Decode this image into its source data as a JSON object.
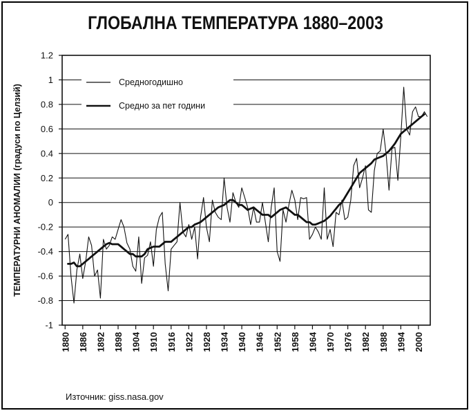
{
  "chart_data": {
    "type": "line",
    "title": "ГЛОБАЛНА ТЕМПЕРАТУРА 1880–2003",
    "xlabel": "",
    "ylabel": "ТЕМПЕРАТУРНИ АНОМАЛИИ (градуси по Целзий)",
    "xlim": [
      1879,
      2004
    ],
    "ylim": [
      -1,
      1.2
    ],
    "yticks": [
      -1,
      -0.8,
      -0.6,
      -0.4,
      -0.2,
      0,
      0.2,
      0.4,
      0.6,
      0.8,
      1,
      1.2
    ],
    "ytick_labels": [
      "-1",
      "-0.8",
      "-0.6",
      "-0.4",
      "-0.2",
      "0",
      "0.2",
      "0.4",
      "0.6",
      "0.8",
      "1",
      "1.2"
    ],
    "xticks": [
      1880,
      1886,
      1892,
      1898,
      1904,
      1910,
      1916,
      1922,
      1928,
      1934,
      1940,
      1946,
      1952,
      1958,
      1964,
      1970,
      1976,
      1982,
      1988,
      1994,
      2000
    ],
    "xtick_labels": [
      "1880",
      "1886",
      "1892",
      "1898",
      "1904",
      "1910",
      "1916",
      "1922",
      "1928",
      "1934",
      "1940",
      "1946",
      "1952",
      "1958",
      "1964",
      "1970",
      "1976",
      "1982",
      "1988",
      "1994",
      "2000"
    ],
    "grid": true,
    "legend_position": "top-left",
    "years": [
      1880,
      1881,
      1882,
      1883,
      1884,
      1885,
      1886,
      1887,
      1888,
      1889,
      1890,
      1891,
      1892,
      1893,
      1894,
      1895,
      1896,
      1897,
      1898,
      1899,
      1900,
      1901,
      1902,
      1903,
      1904,
      1905,
      1906,
      1907,
      1908,
      1909,
      1910,
      1911,
      1912,
      1913,
      1914,
      1915,
      1916,
      1917,
      1918,
      1919,
      1920,
      1921,
      1922,
      1923,
      1924,
      1925,
      1926,
      1927,
      1928,
      1929,
      1930,
      1931,
      1932,
      1933,
      1934,
      1935,
      1936,
      1937,
      1938,
      1939,
      1940,
      1941,
      1942,
      1943,
      1944,
      1945,
      1946,
      1947,
      1948,
      1949,
      1950,
      1951,
      1952,
      1953,
      1954,
      1955,
      1956,
      1957,
      1958,
      1959,
      1960,
      1961,
      1962,
      1963,
      1964,
      1965,
      1966,
      1967,
      1968,
      1969,
      1970,
      1971,
      1972,
      1973,
      1974,
      1975,
      1976,
      1977,
      1978,
      1979,
      1980,
      1981,
      1982,
      1983,
      1984,
      1985,
      1986,
      1987,
      1988,
      1989,
      1990,
      1991,
      1992,
      1993,
      1994,
      1995,
      1996,
      1997,
      1998,
      1999,
      2000,
      2001,
      2002,
      2003
    ],
    "series": [
      {
        "name": "Средногодишно",
        "values": [
          -0.3,
          -0.26,
          -0.6,
          -0.82,
          -0.55,
          -0.42,
          -0.62,
          -0.48,
          -0.28,
          -0.35,
          -0.6,
          -0.55,
          -0.78,
          -0.3,
          -0.38,
          -0.35,
          -0.28,
          -0.3,
          -0.22,
          -0.14,
          -0.2,
          -0.33,
          -0.38,
          -0.52,
          -0.56,
          -0.28,
          -0.66,
          -0.45,
          -0.43,
          -0.32,
          -0.52,
          -0.22,
          -0.12,
          -0.08,
          -0.5,
          -0.72,
          -0.38,
          -0.35,
          -0.32,
          0.0,
          -0.24,
          -0.28,
          -0.18,
          -0.3,
          -0.2,
          -0.46,
          -0.12,
          0.04,
          -0.2,
          -0.32,
          0.02,
          -0.08,
          -0.12,
          -0.14,
          0.2,
          -0.04,
          -0.16,
          0.08,
          0.0,
          -0.04,
          0.12,
          0.04,
          -0.04,
          -0.18,
          -0.04,
          -0.16,
          -0.16,
          0.0,
          -0.16,
          -0.32,
          -0.04,
          0.12,
          -0.4,
          -0.48,
          -0.06,
          -0.16,
          -0.02,
          0.1,
          0.02,
          -0.14,
          0.04,
          0.03,
          0.04,
          -0.3,
          -0.26,
          -0.2,
          -0.24,
          -0.3,
          0.12,
          -0.3,
          -0.22,
          -0.36,
          -0.08,
          -0.1,
          0.02,
          -0.14,
          -0.12,
          0.02,
          0.3,
          0.36,
          0.12,
          0.2,
          0.3,
          -0.06,
          -0.08,
          0.26,
          0.4,
          0.42,
          0.6,
          0.4,
          0.1,
          0.44,
          0.45,
          0.18,
          0.54,
          0.94,
          0.6,
          0.55,
          0.74,
          0.78,
          0.7,
          0.7,
          0.74,
          0.7
        ]
      },
      {
        "name": "Средно за пет години",
        "x": [
          1881,
          1882,
          1883,
          1884,
          1885,
          1886,
          1887,
          1888,
          1889,
          1890,
          1891,
          1892,
          1893,
          1894,
          1895,
          1896,
          1897,
          1898,
          1899,
          1900,
          1901,
          1902,
          1903,
          1904,
          1905,
          1906,
          1907,
          1908,
          1909,
          1910,
          1911,
          1912,
          1913,
          1914,
          1915,
          1916,
          1917,
          1918,
          1919,
          1920,
          1921,
          1922,
          1923,
          1924,
          1925,
          1926,
          1927,
          1928,
          1929,
          1930,
          1931,
          1932,
          1933,
          1934,
          1935,
          1936,
          1937,
          1938,
          1939,
          1940,
          1941,
          1942,
          1943,
          1944,
          1945,
          1946,
          1947,
          1948,
          1949,
          1950,
          1951,
          1952,
          1953,
          1954,
          1955,
          1956,
          1957,
          1958,
          1959,
          1960,
          1961,
          1962,
          1963,
          1964,
          1965,
          1966,
          1967,
          1968,
          1969,
          1970,
          1971,
          1972,
          1973,
          1974,
          1975,
          1976,
          1977,
          1978,
          1979,
          1980,
          1981,
          1982,
          1983,
          1984,
          1985,
          1986,
          1987,
          1988,
          1989,
          1990,
          1991,
          1992,
          1993,
          1994,
          1995,
          1996,
          1997,
          1998,
          1999,
          2000,
          2001,
          2002
        ],
        "values": [
          -0.5,
          -0.5,
          -0.49,
          -0.52,
          -0.52,
          -0.5,
          -0.48,
          -0.46,
          -0.44,
          -0.42,
          -0.4,
          -0.38,
          -0.36,
          -0.34,
          -0.33,
          -0.34,
          -0.34,
          -0.34,
          -0.36,
          -0.38,
          -0.4,
          -0.42,
          -0.42,
          -0.44,
          -0.44,
          -0.44,
          -0.42,
          -0.38,
          -0.37,
          -0.36,
          -0.36,
          -0.36,
          -0.34,
          -0.32,
          -0.32,
          -0.32,
          -0.3,
          -0.28,
          -0.26,
          -0.24,
          -0.22,
          -0.2,
          -0.2,
          -0.18,
          -0.17,
          -0.16,
          -0.14,
          -0.12,
          -0.1,
          -0.08,
          -0.06,
          -0.04,
          -0.03,
          -0.02,
          0.0,
          0.02,
          0.02,
          0.0,
          -0.02,
          -0.02,
          -0.04,
          -0.06,
          -0.05,
          -0.04,
          -0.06,
          -0.08,
          -0.1,
          -0.1,
          -0.1,
          -0.12,
          -0.1,
          -0.08,
          -0.06,
          -0.05,
          -0.04,
          -0.06,
          -0.08,
          -0.1,
          -0.1,
          -0.12,
          -0.14,
          -0.16,
          -0.16,
          -0.18,
          -0.18,
          -0.17,
          -0.16,
          -0.15,
          -0.13,
          -0.11,
          -0.08,
          -0.05,
          -0.02,
          0.0,
          0.04,
          0.08,
          0.12,
          0.16,
          0.2,
          0.24,
          0.26,
          0.28,
          0.3,
          0.32,
          0.35,
          0.36,
          0.37,
          0.38,
          0.4,
          0.42,
          0.45,
          0.48,
          0.52,
          0.56,
          0.58,
          0.6,
          0.62,
          0.64,
          0.66,
          0.68,
          0.7,
          0.72
        ]
      }
    ],
    "source": "Източник: giss.nasa.gov"
  },
  "colors": {
    "line": "#111111",
    "grid": "#111111",
    "background": "#ffffff"
  }
}
